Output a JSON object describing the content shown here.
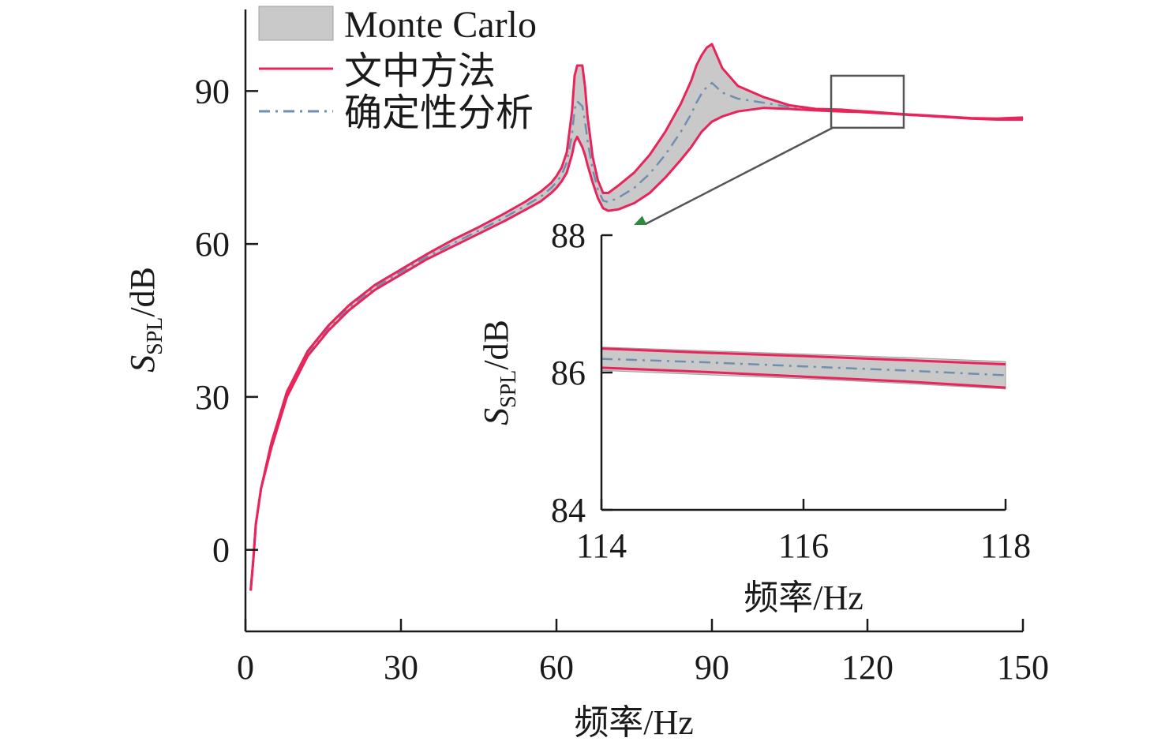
{
  "colors": {
    "band": "#c9c9c9",
    "band_edge": "#a0a0a0",
    "method": "#e8245a",
    "deterministic": "#6e8fb0",
    "zoom_box": "#555555",
    "arrow_line": "#555555",
    "arrow_head": "#2e8b3d"
  },
  "chart_data": [
    {
      "type": "line",
      "xlabel_prefix": "频率",
      "xlabel_unit": "/Hz",
      "ylabel_symbol": "S",
      "ylabel_subscript": "SPL",
      "ylabel_unit": "/dB",
      "xlim": [
        0,
        150
      ],
      "ylim": [
        -16,
        106
      ],
      "xticks": [
        0,
        30,
        60,
        90,
        120,
        150
      ],
      "yticks": [
        0,
        30,
        60,
        90
      ],
      "legend_position": "top-left",
      "legend": [
        "Monte Carlo",
        "文中方法",
        "确定性分析"
      ],
      "series": [
        {
          "name": "Monte Carlo",
          "kind": "band",
          "x": [
            1,
            1.5,
            2,
            3,
            5,
            8,
            12,
            16,
            20,
            25,
            30,
            35,
            40,
            45,
            50,
            54,
            57,
            59,
            60,
            61,
            62,
            63,
            63.5,
            64,
            65,
            65.5,
            66,
            67,
            68,
            69,
            70,
            72,
            75,
            78,
            81,
            84,
            86,
            87,
            88,
            89,
            90,
            92,
            95,
            100,
            105,
            110,
            115,
            118,
            120,
            125,
            130,
            135,
            140,
            145,
            150
          ],
          "lower": [
            -8,
            -2,
            5,
            12,
            20,
            30,
            38,
            43,
            47,
            51,
            54,
            57,
            59.5,
            62,
            64.5,
            66.7,
            68.4,
            70,
            71,
            72.3,
            74,
            77.5,
            80,
            81,
            79,
            77.5,
            75.5,
            72,
            69,
            67,
            66.5,
            66.8,
            68,
            70,
            73,
            76.5,
            79,
            80.5,
            82,
            83,
            84,
            85,
            86,
            86.7,
            86.5,
            86.2,
            86.0,
            85.9,
            85.8,
            85.5,
            85.2,
            84.9,
            84.6,
            84.4,
            84.4
          ],
          "upper": [
            -8,
            -2,
            5,
            12,
            21,
            31,
            39,
            44,
            48,
            52,
            55,
            58,
            60.8,
            63.3,
            66,
            68.3,
            70.3,
            72,
            73.3,
            75,
            78,
            86,
            93,
            95,
            95,
            91,
            85,
            77,
            72.5,
            70,
            70,
            71.5,
            74,
            77.5,
            82,
            87.5,
            92,
            95,
            97,
            98.5,
            99.2,
            94.5,
            91,
            88.8,
            87.2,
            86.5,
            86.35,
            86.1,
            86.0,
            85.6,
            85.3,
            85.0,
            84.7,
            84.6,
            84.8
          ]
        },
        {
          "name": "文中方法",
          "kind": "bounds",
          "x": [
            1,
            1.5,
            2,
            3,
            5,
            8,
            12,
            16,
            20,
            25,
            30,
            35,
            40,
            45,
            50,
            54,
            57,
            59,
            60,
            61,
            62,
            63,
            63.5,
            64,
            65,
            65.5,
            66,
            67,
            68,
            69,
            70,
            72,
            75,
            78,
            81,
            84,
            86,
            87,
            88,
            89,
            90,
            92,
            95,
            100,
            105,
            110,
            115,
            118,
            120,
            125,
            130,
            135,
            140,
            145,
            150
          ],
          "lower": [
            -8,
            -2,
            5,
            12,
            20,
            30,
            38,
            43,
            47,
            51,
            54,
            57,
            59.5,
            62,
            64.5,
            66.7,
            68.4,
            70,
            71,
            72.3,
            74,
            77.5,
            80,
            81,
            79,
            77.5,
            75.5,
            72,
            69,
            67,
            66.5,
            66.8,
            68,
            70,
            73,
            76.5,
            79,
            80.5,
            82,
            83,
            84,
            85,
            86,
            86.7,
            86.5,
            86.2,
            86.0,
            85.9,
            85.8,
            85.5,
            85.2,
            84.9,
            84.6,
            84.4,
            84.4
          ],
          "upper": [
            -8,
            -2,
            5,
            12,
            21,
            31,
            39,
            44,
            48,
            52,
            55,
            58,
            60.8,
            63.3,
            66,
            68.3,
            70.3,
            72,
            73.3,
            75,
            78,
            86,
            93,
            95,
            95,
            91,
            85,
            77,
            72.5,
            70,
            70,
            71.5,
            74,
            77.5,
            82,
            87.5,
            92,
            95,
            97,
            98.5,
            99.2,
            94.5,
            91,
            88.8,
            87.2,
            86.5,
            86.35,
            86.1,
            86.0,
            85.6,
            85.3,
            85.0,
            84.7,
            84.6,
            84.8
          ]
        },
        {
          "name": "确定性分析",
          "kind": "line",
          "x": [
            1,
            1.5,
            2,
            3,
            5,
            8,
            12,
            16,
            20,
            25,
            30,
            35,
            40,
            45,
            50,
            54,
            57,
            59,
            60,
            61,
            62,
            63,
            63.5,
            64,
            65,
            65.5,
            66,
            67,
            68,
            69,
            70,
            72,
            75,
            78,
            81,
            84,
            86,
            87,
            88,
            89,
            90,
            92,
            95,
            100,
            105,
            110,
            115,
            118,
            120,
            125,
            130,
            135,
            140,
            145,
            150
          ],
          "y": [
            -8,
            -2,
            5,
            12,
            20.5,
            30.5,
            38.5,
            43.5,
            47.5,
            51.5,
            54.5,
            57.5,
            60.1,
            62.6,
            65.2,
            67.5,
            69.3,
            71,
            72.1,
            73.6,
            76,
            81.5,
            86.5,
            88,
            87,
            84.2,
            80.2,
            74.5,
            70.7,
            68.5,
            68.2,
            69.1,
            71,
            73.8,
            77.5,
            82,
            85.5,
            87.7,
            89.5,
            90.8,
            91.6,
            89.7,
            88.5,
            87.7,
            86.85,
            86.35,
            86.15,
            86.0,
            85.9,
            85.55,
            85.25,
            84.95,
            84.65,
            84.5,
            84.6
          ]
        }
      ],
      "zoom_box": {
        "x_range": [
          113,
          127
        ],
        "y_range": [
          82.8,
          93
        ]
      }
    },
    {
      "type": "line",
      "xlabel_prefix": "频率",
      "xlabel_unit": "/Hz",
      "ylabel_symbol": "S",
      "ylabel_subscript": "SPL",
      "ylabel_unit": "/dB",
      "xlim": [
        114,
        118
      ],
      "ylim": [
        84,
        88
      ],
      "xticks": [
        114,
        116,
        118
      ],
      "yticks": [
        84,
        86,
        88
      ],
      "series": [
        {
          "name": "Monte Carlo",
          "kind": "band",
          "x": [
            114,
            115,
            116,
            117,
            118
          ],
          "lower": [
            86.03,
            85.97,
            85.91,
            85.84,
            85.76
          ],
          "upper": [
            86.37,
            86.32,
            86.27,
            86.22,
            86.16
          ]
        },
        {
          "name": "文中方法",
          "kind": "bounds",
          "x": [
            114,
            115,
            116,
            117,
            118
          ],
          "lower": [
            86.07,
            86.01,
            85.94,
            85.87,
            85.78
          ],
          "upper": [
            86.35,
            86.29,
            86.24,
            86.18,
            86.12
          ]
        },
        {
          "name": "确定性分析",
          "kind": "line",
          "x": [
            114,
            115,
            116,
            117,
            118
          ],
          "y": [
            86.2,
            86.15,
            86.09,
            86.03,
            85.96
          ]
        }
      ]
    }
  ]
}
